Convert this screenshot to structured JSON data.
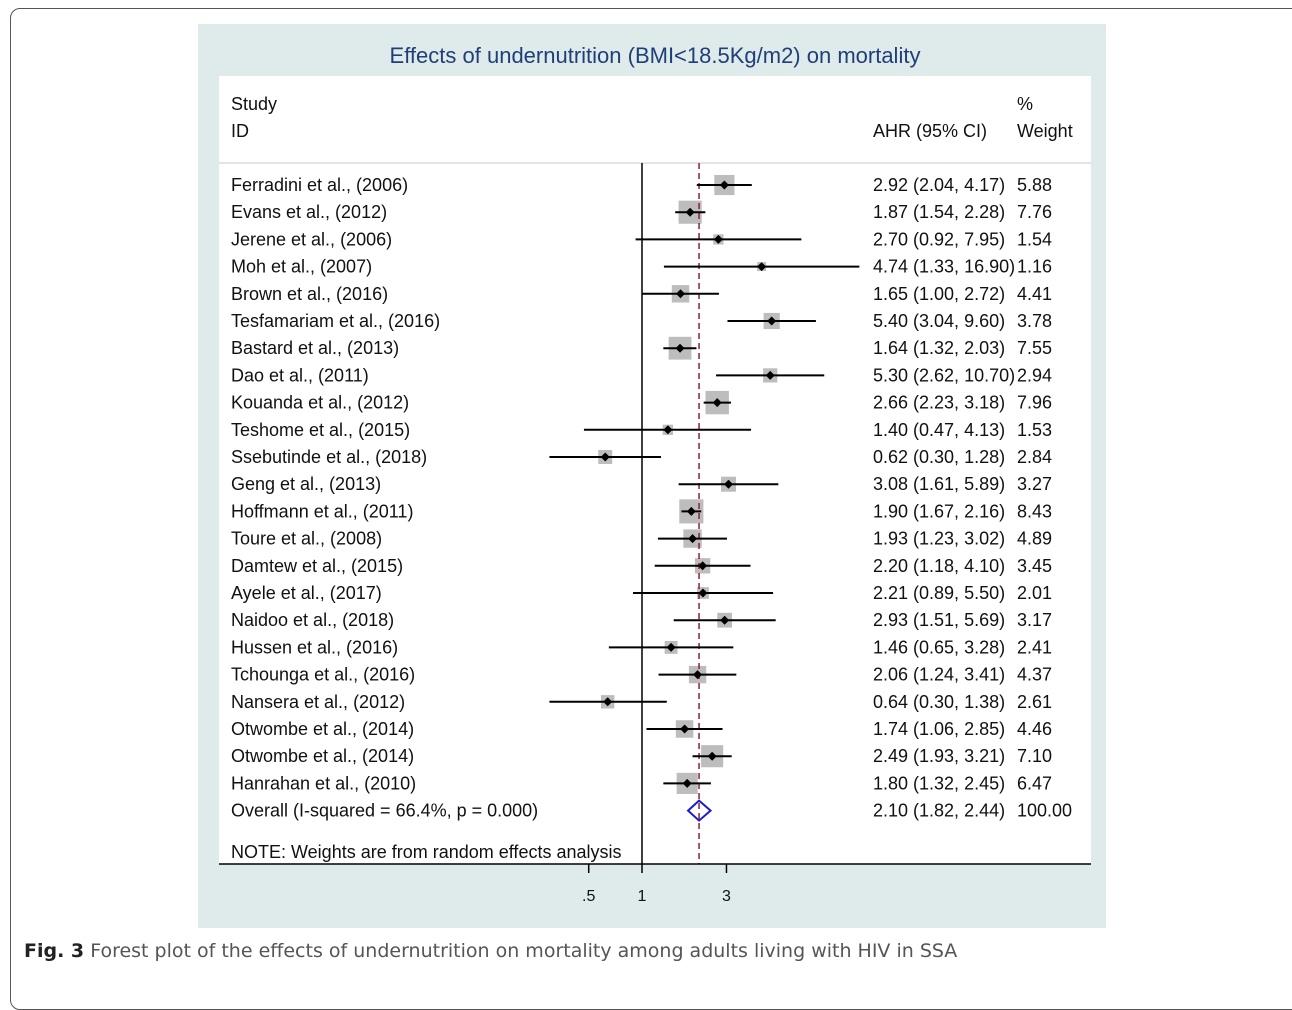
{
  "caption": {
    "label": "Fig. 3",
    "text": "Forest plot of the effects of undernutrition on mortality among adults living with HIV in SSA"
  },
  "colors": {
    "panel": "#dfeaea",
    "title": "#1f3f78",
    "box": "#bdbdbd",
    "ref_line": "#8b2231",
    "overall": "#1c1ccc"
  },
  "chart_data": {
    "type": "forest",
    "title": "Effects of undernutrition (BMI<18.5Kg/m2) on mortality",
    "column_headers": {
      "study": [
        "Study",
        "ID"
      ],
      "effect": "AHR (95% CI)",
      "weight": [
        "%",
        "Weight"
      ]
    },
    "x_scale": "log",
    "x_ticks": [
      {
        "value": 0.5,
        "label": ".5"
      },
      {
        "value": 1,
        "label": "1"
      },
      {
        "value": 3,
        "label": "3"
      }
    ],
    "null_line": 1,
    "studies": [
      {
        "id": "Ferradini et al., (2006)",
        "est": 2.92,
        "lo": 2.04,
        "hi": 4.17,
        "ci_text": "2.92 (2.04, 4.17)",
        "weight": "5.88"
      },
      {
        "id": "Evans et al., (2012)",
        "est": 1.87,
        "lo": 1.54,
        "hi": 2.28,
        "ci_text": "1.87 (1.54, 2.28)",
        "weight": "7.76"
      },
      {
        "id": "Jerene et al., (2006)",
        "est": 2.7,
        "lo": 0.92,
        "hi": 7.95,
        "ci_text": "2.70 (0.92, 7.95)",
        "weight": "1.54"
      },
      {
        "id": "Moh et al., (2007)",
        "est": 4.74,
        "lo": 1.33,
        "hi": 16.9,
        "ci_text": "4.74 (1.33, 16.90)",
        "weight": "1.16"
      },
      {
        "id": "Brown et al., (2016)",
        "est": 1.65,
        "lo": 1.0,
        "hi": 2.72,
        "ci_text": "1.65 (1.00, 2.72)",
        "weight": "4.41"
      },
      {
        "id": "Tesfamariam et al., (2016)",
        "est": 5.4,
        "lo": 3.04,
        "hi": 9.6,
        "ci_text": "5.40 (3.04, 9.60)",
        "weight": "3.78"
      },
      {
        "id": "Bastard et al., (2013)",
        "est": 1.64,
        "lo": 1.32,
        "hi": 2.03,
        "ci_text": "1.64 (1.32, 2.03)",
        "weight": "7.55"
      },
      {
        "id": "Dao et al., (2011)",
        "est": 5.3,
        "lo": 2.62,
        "hi": 10.7,
        "ci_text": "5.30 (2.62, 10.70)",
        "weight": "2.94"
      },
      {
        "id": "Kouanda et al.,  (2012)",
        "est": 2.66,
        "lo": 2.23,
        "hi": 3.18,
        "ci_text": "2.66 (2.23, 3.18)",
        "weight": "7.96"
      },
      {
        "id": "Teshome et al.,  (2015)",
        "est": 1.4,
        "lo": 0.47,
        "hi": 4.13,
        "ci_text": "1.40 (0.47, 4.13)",
        "weight": "1.53"
      },
      {
        "id": "Ssebutinde et al., (2018)",
        "est": 0.62,
        "lo": 0.3,
        "hi": 1.28,
        "ci_text": "0.62 (0.30, 1.28)",
        "weight": "2.84"
      },
      {
        "id": "Geng et al., (2013)",
        "est": 3.08,
        "lo": 1.61,
        "hi": 5.89,
        "ci_text": "3.08 (1.61, 5.89)",
        "weight": "3.27"
      },
      {
        "id": "Hoffmann et al., (2011)",
        "est": 1.9,
        "lo": 1.67,
        "hi": 2.16,
        "ci_text": "1.90 (1.67, 2.16)",
        "weight": "8.43"
      },
      {
        "id": "Toure et al., (2008)",
        "est": 1.93,
        "lo": 1.23,
        "hi": 3.02,
        "ci_text": "1.93 (1.23, 3.02)",
        "weight": "4.89"
      },
      {
        "id": "Damtew et al., (2015)",
        "est": 2.2,
        "lo": 1.18,
        "hi": 4.1,
        "ci_text": "2.20 (1.18, 4.10)",
        "weight": "3.45"
      },
      {
        "id": "Ayele et al., (2017)",
        "est": 2.21,
        "lo": 0.89,
        "hi": 5.5,
        "ci_text": "2.21 (0.89, 5.50)",
        "weight": "2.01"
      },
      {
        "id": "Naidoo et al., (2018)",
        "est": 2.93,
        "lo": 1.51,
        "hi": 5.69,
        "ci_text": "2.93 (1.51, 5.69)",
        "weight": "3.17"
      },
      {
        "id": "Hussen et al., (2016)",
        "est": 1.46,
        "lo": 0.65,
        "hi": 3.28,
        "ci_text": "1.46 (0.65, 3.28)",
        "weight": "2.41"
      },
      {
        "id": "Tchounga et al., (2016)",
        "est": 2.06,
        "lo": 1.24,
        "hi": 3.41,
        "ci_text": "2.06 (1.24, 3.41)",
        "weight": "4.37"
      },
      {
        "id": "Nansera et al., (2012)",
        "est": 0.64,
        "lo": 0.3,
        "hi": 1.38,
        "ci_text": "0.64 (0.30, 1.38)",
        "weight": "2.61"
      },
      {
        "id": "Otwombe et al., (2014)",
        "est": 1.74,
        "lo": 1.06,
        "hi": 2.85,
        "ci_text": "1.74 (1.06, 2.85)",
        "weight": "4.46"
      },
      {
        "id": "Otwombe et al., (2014)",
        "est": 2.49,
        "lo": 1.93,
        "hi": 3.21,
        "ci_text": "2.49 (1.93, 3.21)",
        "weight": "7.10"
      },
      {
        "id": "Hanrahan et al.,  (2010)",
        "est": 1.8,
        "lo": 1.32,
        "hi": 2.45,
        "ci_text": "1.80 (1.32, 2.45)",
        "weight": "6.47"
      }
    ],
    "overall": {
      "id": "Overall  (I-squared = 66.4%, p = 0.000)",
      "est": 2.1,
      "lo": 1.82,
      "hi": 2.44,
      "ci_text": "2.10 (1.82, 2.44)",
      "weight": "100.00"
    },
    "note": "NOTE: Weights are from random effects analysis"
  }
}
